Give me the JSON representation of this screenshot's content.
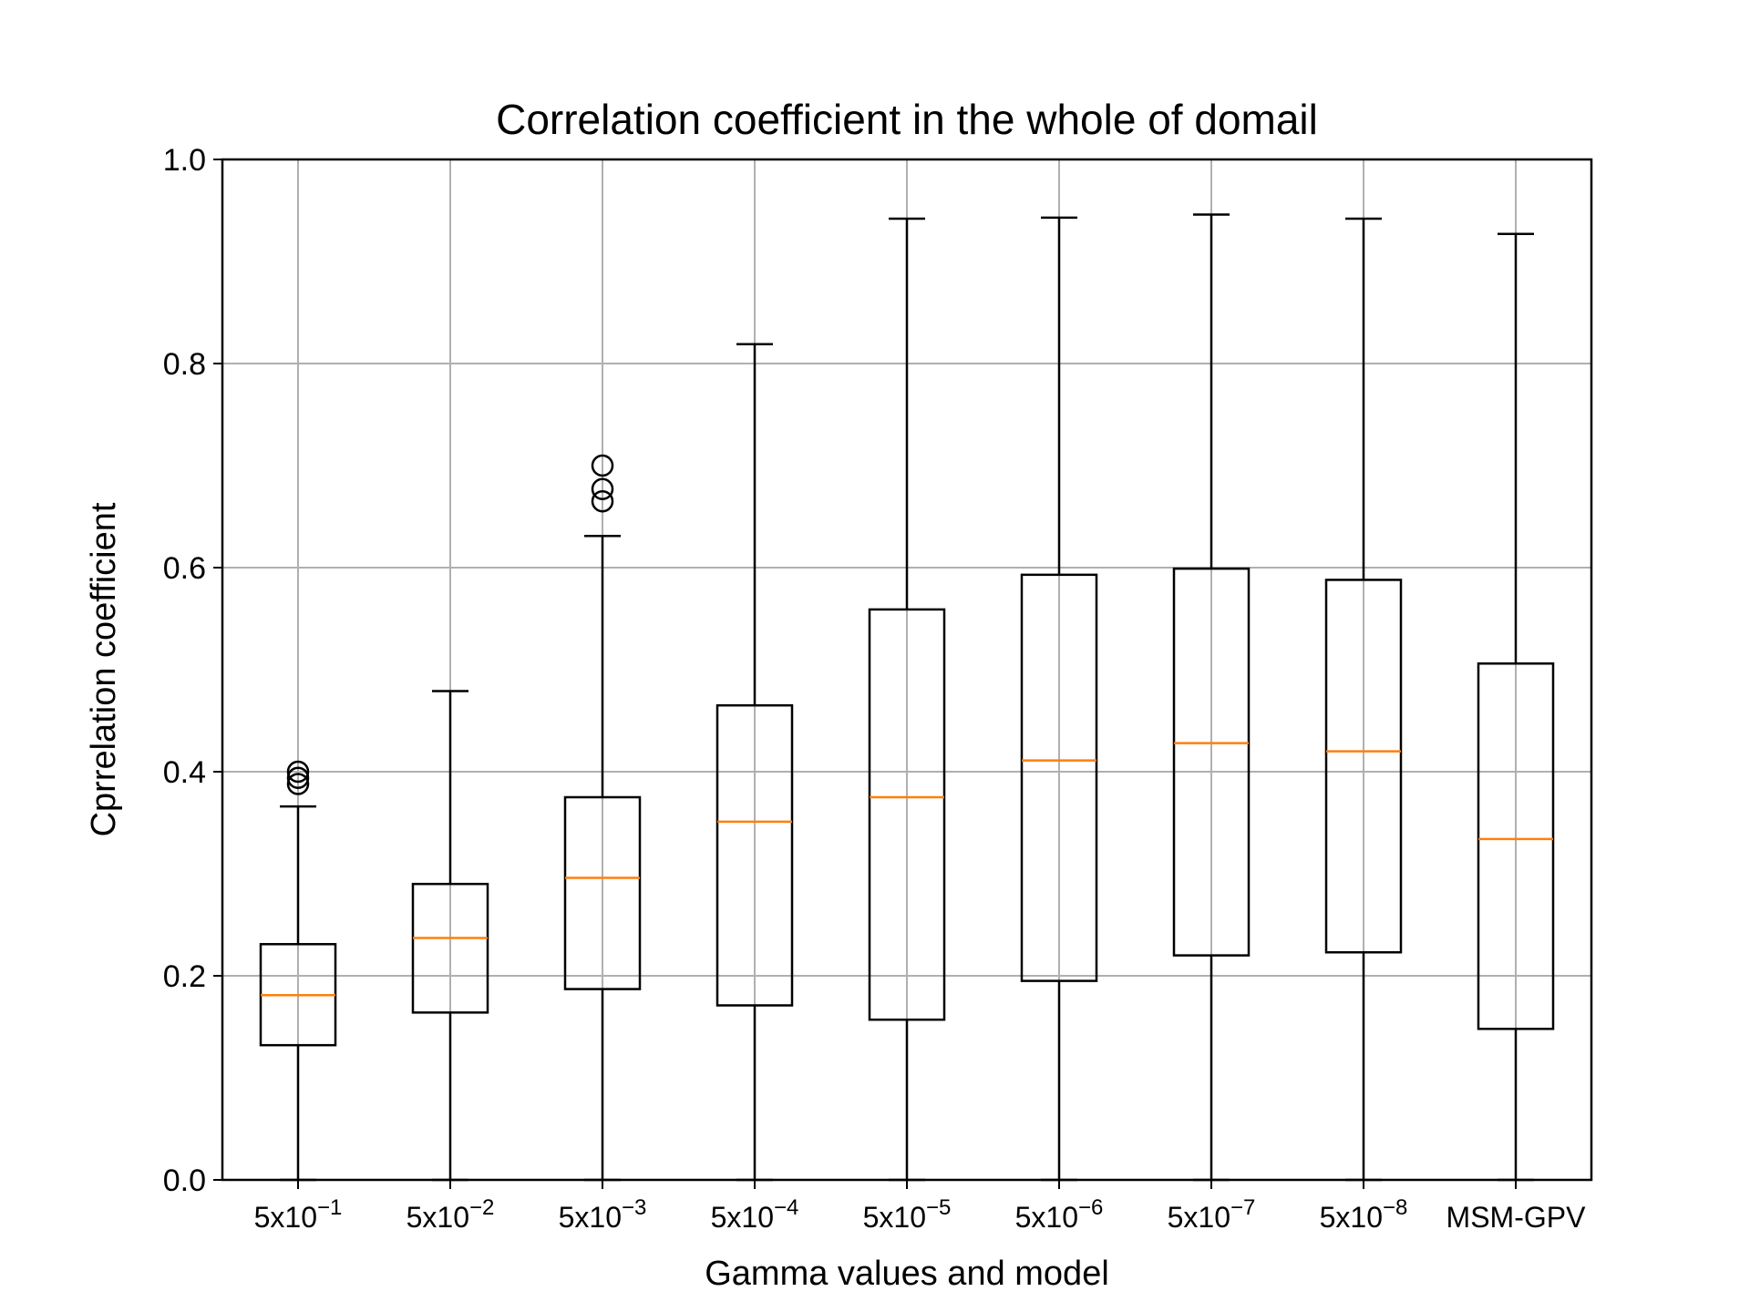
{
  "chart_data": {
    "type": "box",
    "title": "Correlation coefficient in the whole of domail",
    "xlabel": "Gamma values and model",
    "ylabel": "Cprrelation coefficient",
    "ylim": [
      0.0,
      1.0
    ],
    "yticks": [
      0.0,
      0.2,
      0.4,
      0.6,
      0.8,
      1.0
    ],
    "ytick_labels": [
      "0.0",
      "0.2",
      "0.4",
      "0.6",
      "0.8",
      "1.0"
    ],
    "grid": true,
    "categories": [
      {
        "base": "5x10",
        "exp": "−1"
      },
      {
        "base": "5x10",
        "exp": "−2"
      },
      {
        "base": "5x10",
        "exp": "−3"
      },
      {
        "base": "5x10",
        "exp": "−4"
      },
      {
        "base": "5x10",
        "exp": "−5"
      },
      {
        "base": "5x10",
        "exp": "−6"
      },
      {
        "base": "5x10",
        "exp": "−7"
      },
      {
        "base": "5x10",
        "exp": "−8"
      },
      {
        "base": "MSM-GPV",
        "exp": ""
      }
    ],
    "boxes": [
      {
        "whislo": 0.0,
        "q1": 0.132,
        "med": 0.181,
        "q3": 0.231,
        "whishi": 0.366,
        "fliers": [
          0.388,
          0.394,
          0.4
        ]
      },
      {
        "whislo": 0.0,
        "q1": 0.164,
        "med": 0.237,
        "q3": 0.29,
        "whishi": 0.479,
        "fliers": []
      },
      {
        "whislo": 0.0,
        "q1": 0.187,
        "med": 0.296,
        "q3": 0.375,
        "whishi": 0.631,
        "fliers": [
          0.665,
          0.677,
          0.7
        ]
      },
      {
        "whislo": 0.0,
        "q1": 0.171,
        "med": 0.351,
        "q3": 0.465,
        "whishi": 0.819,
        "fliers": []
      },
      {
        "whislo": 0.0,
        "q1": 0.157,
        "med": 0.375,
        "q3": 0.559,
        "whishi": 0.942,
        "fliers": []
      },
      {
        "whislo": 0.0,
        "q1": 0.195,
        "med": 0.411,
        "q3": 0.593,
        "whishi": 0.943,
        "fliers": []
      },
      {
        "whislo": 0.0,
        "q1": 0.22,
        "med": 0.428,
        "q3": 0.599,
        "whishi": 0.946,
        "fliers": []
      },
      {
        "whislo": 0.0,
        "q1": 0.223,
        "med": 0.42,
        "q3": 0.588,
        "whishi": 0.942,
        "fliers": []
      },
      {
        "whislo": 0.0,
        "q1": 0.148,
        "med": 0.334,
        "q3": 0.506,
        "whishi": 0.927,
        "fliers": []
      }
    ],
    "colors": {
      "box": "#000000",
      "median": "#ff7f0e",
      "grid": "#b0b0b0"
    }
  }
}
